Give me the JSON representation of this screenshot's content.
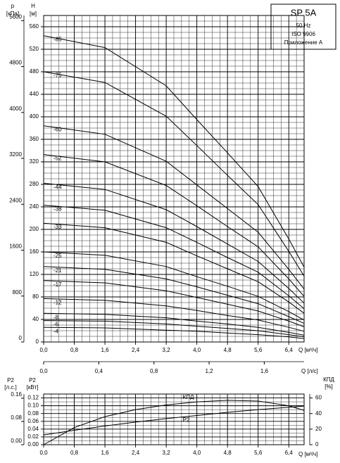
{
  "chart_data": [
    {
      "type": "line",
      "title": "SP 5A",
      "subtitle": [
        "50 Hz",
        "ISO 9906",
        "Приложение А"
      ],
      "x_label": "Q [м³/ч]",
      "x2_label": "Q [л/с]",
      "y_label": "H",
      "y_unit": "[м]",
      "y2_label": "p",
      "y2_unit": "[кПа]",
      "x": [
        0,
        1.6,
        3.2,
        4.0,
        4.8,
        5.6,
        6.4,
        6.8
      ],
      "xlim": [
        0,
        6.8
      ],
      "xticks": [
        {
          "value": 0,
          "label": "0,0"
        },
        {
          "value": 0.8,
          "label": "0,8"
        },
        {
          "value": 1.6,
          "label": "1,6"
        },
        {
          "value": 2.4,
          "label": "2,4"
        },
        {
          "value": 3.2,
          "label": "3,2"
        },
        {
          "value": 4.0,
          "label": "4,0"
        },
        {
          "value": 4.8,
          "label": "4,8"
        },
        {
          "value": 5.6,
          "label": "5,6"
        },
        {
          "value": 6.4,
          "label": "6,4"
        }
      ],
      "x2lim": [
        0,
        1.8889
      ],
      "x2ticks": [
        {
          "value": 0,
          "label": "0,0"
        },
        {
          "value": 0.4,
          "label": "0,4"
        },
        {
          "value": 0.8,
          "label": "0,8"
        },
        {
          "value": 1.2,
          "label": "1,2"
        },
        {
          "value": 1.6,
          "label": "1,6"
        }
      ],
      "ylim": [
        0,
        580
      ],
      "yticks": [
        0,
        40,
        80,
        120,
        160,
        200,
        240,
        280,
        320,
        360,
        400,
        440,
        480,
        520,
        560
      ],
      "y2lim": [
        0,
        5690
      ],
      "y2ticks": [
        0,
        800,
        1600,
        2400,
        3200,
        4000,
        4800,
        5600
      ],
      "grid": true,
      "series": [
        {
          "name": "-85",
          "color": "#000000",
          "values": [
            544,
            523,
            455,
            395,
            336,
            276,
            183,
            133
          ]
        },
        {
          "name": "-75",
          "color": "#000000",
          "values": [
            480,
            461,
            401,
            349,
            296,
            244,
            161,
            117
          ]
        },
        {
          "name": "-60",
          "color": "#000000",
          "values": [
            384,
            369,
            321,
            279,
            237,
            195,
            129,
            94
          ]
        },
        {
          "name": "-52",
          "color": "#000000",
          "values": [
            333,
            320,
            278,
            242,
            205,
            169,
            112,
            81
          ]
        },
        {
          "name": "-44",
          "color": "#000000",
          "values": [
            282,
            271,
            235,
            205,
            174,
            143,
            95,
            69
          ]
        },
        {
          "name": "-38",
          "color": "#000000",
          "values": [
            243,
            234,
            203,
            177,
            150,
            124,
            82,
            59
          ]
        },
        {
          "name": "-33",
          "color": "#000000",
          "values": [
            211,
            203,
            177,
            153,
            130,
            107,
            71,
            51
          ]
        },
        {
          "name": "-25",
          "color": "#000000",
          "values": [
            160,
            154,
            134,
            116,
            99,
            81,
            54,
            39
          ]
        },
        {
          "name": "-21",
          "color": "#000000",
          "values": [
            134,
            129,
            112,
            98,
            83,
            68,
            45,
            33
          ]
        },
        {
          "name": "-17",
          "color": "#000000",
          "values": [
            109,
            105,
            91,
            79,
            67,
            55,
            37,
            27
          ]
        },
        {
          "name": "-12",
          "color": "#000000",
          "values": [
            77,
            74,
            64,
            56,
            47,
            39,
            26,
            19
          ]
        },
        {
          "name": "-8",
          "color": "#000000",
          "values": [
            51,
            49,
            43,
            37,
            32,
            26,
            17,
            12
          ]
        },
        {
          "name": "-6",
          "color": "#000000",
          "values": [
            38,
            37,
            32,
            28,
            24,
            20,
            13,
            9
          ]
        },
        {
          "name": "-4",
          "color": "#000000",
          "values": [
            26,
            25,
            21,
            19,
            16,
            13,
            9,
            6
          ]
        }
      ]
    },
    {
      "type": "line",
      "x_label": "Q [м³/ч]",
      "y_label": "P2",
      "y_unit": "[кВт]",
      "y2_label": "КПД",
      "y2_unit": "[%]",
      "y3_label": "P2",
      "y3_unit": "[л.с.]",
      "x": [
        0,
        0.8,
        1.6,
        2.4,
        3.2,
        4.0,
        4.8,
        5.6,
        6.4,
        6.8
      ],
      "xlim": [
        0,
        6.8
      ],
      "xticks": [
        {
          "value": 0,
          "label": "0,0"
        },
        {
          "value": 0.8,
          "label": "0,8"
        },
        {
          "value": 1.6,
          "label": "1,6"
        },
        {
          "value": 2.4,
          "label": "2,4"
        },
        {
          "value": 3.2,
          "label": "3,2"
        },
        {
          "value": 4.0,
          "label": "4,0"
        },
        {
          "value": 4.8,
          "label": "4,8"
        },
        {
          "value": 5.6,
          "label": "5,6"
        },
        {
          "value": 6.4,
          "label": "6,4"
        }
      ],
      "ylim": [
        0,
        0.13
      ],
      "yticks": [
        {
          "value": 0,
          "label": "0.00"
        },
        {
          "value": 0.02,
          "label": "0.02"
        },
        {
          "value": 0.04,
          "label": "0.04"
        },
        {
          "value": 0.06,
          "label": "0.06"
        },
        {
          "value": 0.08,
          "label": "0.08"
        },
        {
          "value": 0.1,
          "label": "0.10"
        },
        {
          "value": 0.12,
          "label": "0.12"
        }
      ],
      "y2lim": [
        0,
        65
      ],
      "y2ticks": [
        0,
        20,
        40,
        60
      ],
      "y3lim": [
        0,
        0.1743
      ],
      "y3ticks": [
        {
          "value": 0,
          "label": "0.00"
        },
        {
          "value": 0.08,
          "label": "0.08"
        },
        {
          "value": 0.16,
          "label": "0.16"
        }
      ],
      "grid": true,
      "series": [
        {
          "name": "КПД",
          "color": "#000000",
          "axis": "y2",
          "values": [
            0,
            22,
            36,
            45,
            51,
            55,
            57,
            56,
            50,
            44
          ]
        },
        {
          "name": "P2",
          "color": "#000000",
          "values": [
            0.025,
            0.037,
            0.048,
            0.058,
            0.067,
            0.075,
            0.083,
            0.09,
            0.096,
            0.099
          ]
        }
      ]
    }
  ]
}
